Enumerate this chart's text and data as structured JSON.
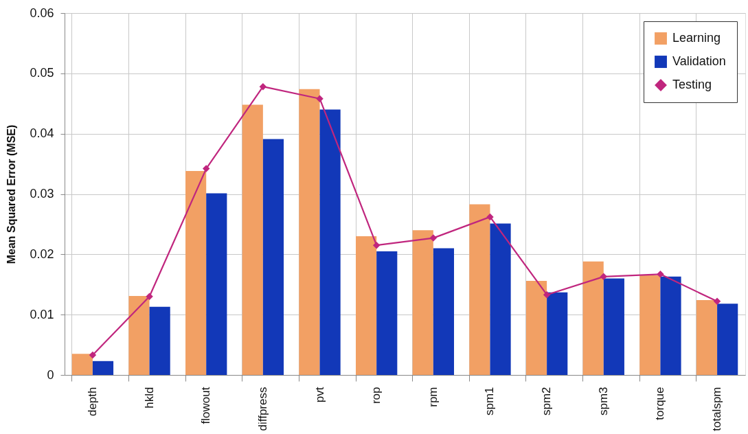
{
  "chart_data": {
    "type": "bar",
    "ylabel": "Mean Squared Error (MSE)",
    "categories": [
      "depth",
      "hkld",
      "flowout",
      "diffpress",
      "pvt",
      "rop",
      "rpm",
      "spm1",
      "spm2",
      "spm3",
      "torque",
      "totalspm"
    ],
    "series": [
      {
        "name": "Learning",
        "color": "#f2a064",
        "values": [
          0.0035,
          0.0131,
          0.0338,
          0.0448,
          0.0474,
          0.023,
          0.024,
          0.0283,
          0.0156,
          0.0188,
          0.0165,
          0.0124
        ]
      },
      {
        "name": "Validation",
        "color": "#1238b8",
        "values": [
          0.0023,
          0.0113,
          0.0301,
          0.0391,
          0.044,
          0.0205,
          0.021,
          0.0251,
          0.0137,
          0.016,
          0.0163,
          0.0118
        ]
      },
      {
        "name": "Testing",
        "type": "line",
        "color": "#c0267e",
        "values": [
          0.0033,
          0.013,
          0.0342,
          0.0478,
          0.0458,
          0.0215,
          0.0227,
          0.0262,
          0.0133,
          0.0163,
          0.0167,
          0.0122
        ]
      }
    ],
    "ylim": [
      0,
      0.06
    ],
    "yticks": [
      0,
      0.01,
      0.02,
      0.03,
      0.04,
      0.05,
      0.06
    ],
    "grid": true,
    "legend": "top right",
    "marker": "diamond"
  }
}
